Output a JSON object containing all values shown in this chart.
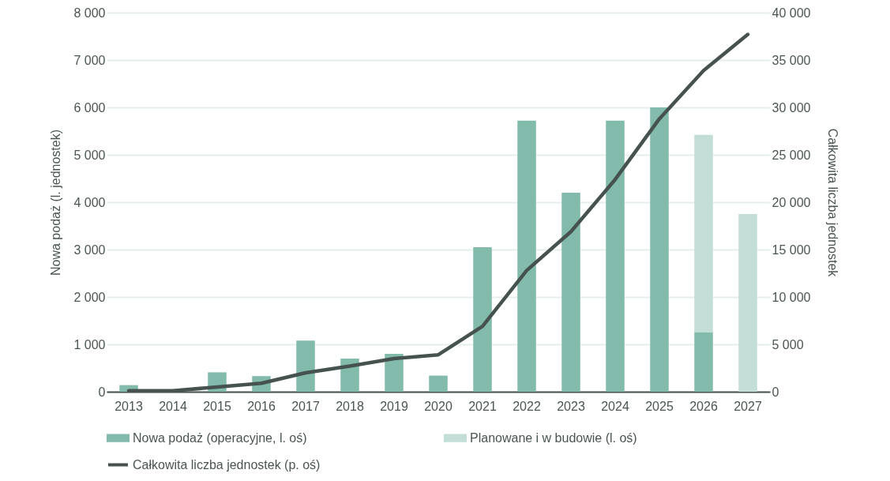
{
  "chart_data": {
    "type": "bar",
    "stacked": true,
    "categories": [
      "2013",
      "2014",
      "2015",
      "2016",
      "2017",
      "2018",
      "2019",
      "2020",
      "2021",
      "2022",
      "2023",
      "2024",
      "2025",
      "2026",
      "2027"
    ],
    "series": [
      {
        "name": "Nowa podaż (operacyjne, l. oś)",
        "color": "#82bbac",
        "values": [
          140,
          0,
          410,
          330,
          1080,
          700,
          800,
          340,
          3050,
          5720,
          4200,
          5720,
          6000,
          1260,
          null
        ]
      },
      {
        "name": "Planowane i w budowie (l. oś)",
        "color": "#c3ded6",
        "values": [
          null,
          null,
          null,
          null,
          null,
          null,
          null,
          null,
          null,
          null,
          null,
          null,
          null,
          4160,
          3750
        ]
      },
      {
        "name": "Całkowita liczba jednostek (p. oś)",
        "type": "line",
        "axis": "y2",
        "color": "#46524f",
        "values": [
          100,
          100,
          500,
          900,
          2000,
          2700,
          3500,
          3900,
          6900,
          12800,
          16900,
          22400,
          28800,
          33900,
          37700
        ]
      }
    ],
    "ylabel": "Nowa podaż (l. jednostek)",
    "y2label": "Całkowita liczba jednostek",
    "ylim": [
      0,
      8000
    ],
    "yticks": [
      0,
      1000,
      2000,
      3000,
      4000,
      5000,
      6000,
      7000,
      8000
    ],
    "y2lim": [
      0,
      40000
    ],
    "y2ticks": [
      0,
      5000,
      10000,
      15000,
      20000,
      25000,
      30000,
      35000,
      40000
    ],
    "grid": "y",
    "legend": "bottom"
  }
}
